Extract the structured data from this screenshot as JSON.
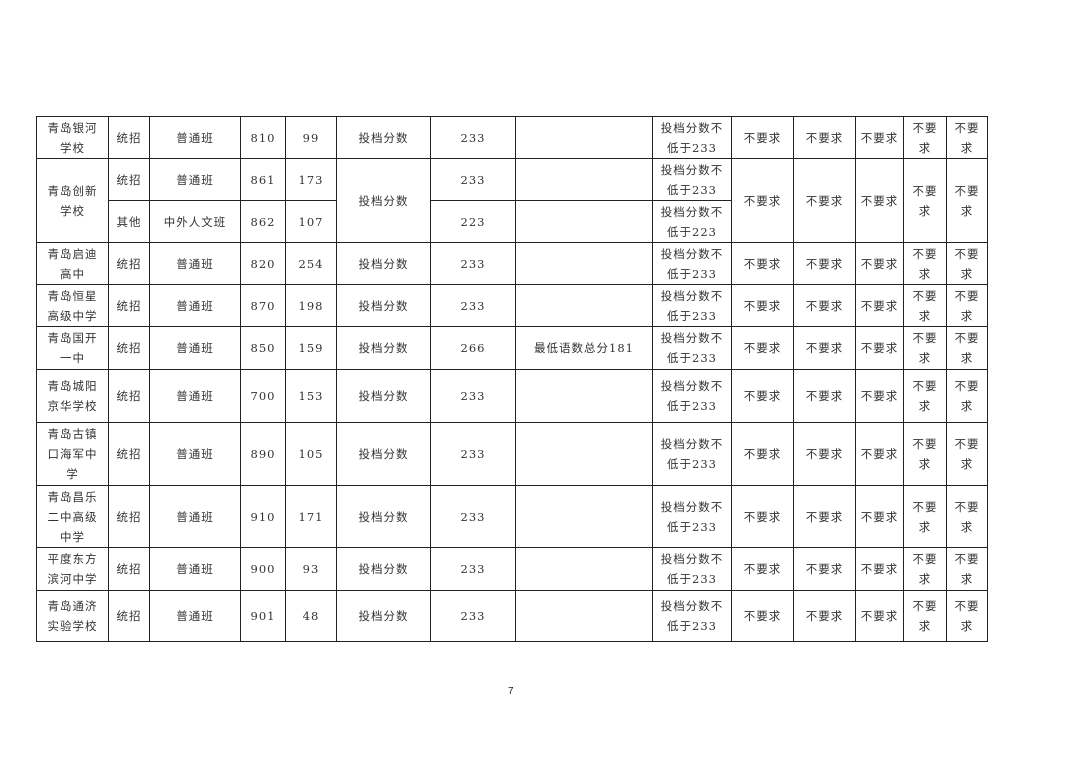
{
  "page_number": "7",
  "rows": [
    {
      "school": "青岛银河学校",
      "basis": "投档分数",
      "req": [
        "不要求",
        "不要求",
        "不要求",
        "不要求",
        "不要求"
      ],
      "entries": [
        {
          "type": "统招",
          "class": "普通班",
          "code": "810",
          "plan": "99",
          "score": "233",
          "extra": "",
          "min_req": "投档分数不低于233"
        }
      ]
    },
    {
      "school": "青岛创新学校",
      "basis": "投档分数",
      "req": [
        "不要求",
        "不要求",
        "不要求",
        "不要求",
        "不要求"
      ],
      "entries": [
        {
          "type": "统招",
          "class": "普通班",
          "code": "861",
          "plan": "173",
          "score": "233",
          "extra": "",
          "min_req": "投档分数不低于233"
        },
        {
          "type": "其他",
          "class": "中外人文班",
          "code": "862",
          "plan": "107",
          "score": "223",
          "extra": "",
          "min_req": "投档分数不低于223"
        }
      ]
    },
    {
      "school": "青岛启迪高中",
      "basis": "投档分数",
      "req": [
        "不要求",
        "不要求",
        "不要求",
        "不要求",
        "不要求"
      ],
      "entries": [
        {
          "type": "统招",
          "class": "普通班",
          "code": "820",
          "plan": "254",
          "score": "233",
          "extra": "",
          "min_req": "投档分数不低于233"
        }
      ]
    },
    {
      "school": "青岛恒星高级中学",
      "basis": "投档分数",
      "req": [
        "不要求",
        "不要求",
        "不要求",
        "不要求",
        "不要求"
      ],
      "entries": [
        {
          "type": "统招",
          "class": "普通班",
          "code": "870",
          "plan": "198",
          "score": "233",
          "extra": "",
          "min_req": "投档分数不低于233"
        }
      ]
    },
    {
      "school": "青岛国开一中",
      "basis": "投档分数",
      "req": [
        "不要求",
        "不要求",
        "不要求",
        "不要求",
        "不要求"
      ],
      "entries": [
        {
          "type": "统招",
          "class": "普通班",
          "code": "850",
          "plan": "159",
          "score": "266",
          "extra": "最低语数总分181",
          "min_req": "投档分数不低于233"
        }
      ]
    },
    {
      "school": "青岛城阳京华学校",
      "basis": "投档分数",
      "req": [
        "不要求",
        "不要求",
        "不要求",
        "不要求",
        "不要求"
      ],
      "entries": [
        {
          "type": "统招",
          "class": "普通班",
          "code": "700",
          "plan": "153",
          "score": "233",
          "extra": "",
          "min_req": "投档分数不低于233"
        }
      ]
    },
    {
      "school": "青岛古镇口海军中学",
      "basis": "投档分数",
      "req": [
        "不要求",
        "不要求",
        "不要求",
        "不要求",
        "不要求"
      ],
      "entries": [
        {
          "type": "统招",
          "class": "普通班",
          "code": "890",
          "plan": "105",
          "score": "233",
          "extra": "",
          "min_req": "投档分数不低于233"
        }
      ]
    },
    {
      "school": "青岛昌乐二中高级中学",
      "basis": "投档分数",
      "req": [
        "不要求",
        "不要求",
        "不要求",
        "不要求",
        "不要求"
      ],
      "entries": [
        {
          "type": "统招",
          "class": "普通班",
          "code": "910",
          "plan": "171",
          "score": "233",
          "extra": "",
          "min_req": "投档分数不低于233"
        }
      ]
    },
    {
      "school": "平度东方滨河中学",
      "basis": "投档分数",
      "req": [
        "不要求",
        "不要求",
        "不要求",
        "不要求",
        "不要求"
      ],
      "entries": [
        {
          "type": "统招",
          "class": "普通班",
          "code": "900",
          "plan": "93",
          "score": "233",
          "extra": "",
          "min_req": "投档分数不低于233"
        }
      ]
    },
    {
      "school": "青岛通济实验学校",
      "basis": "投档分数",
      "req": [
        "不要求",
        "不要求",
        "不要求",
        "不要求",
        "不要求"
      ],
      "entries": [
        {
          "type": "统招",
          "class": "普通班",
          "code": "901",
          "plan": "48",
          "score": "233",
          "extra": "",
          "min_req": "投档分数不低于233"
        }
      ]
    }
  ]
}
